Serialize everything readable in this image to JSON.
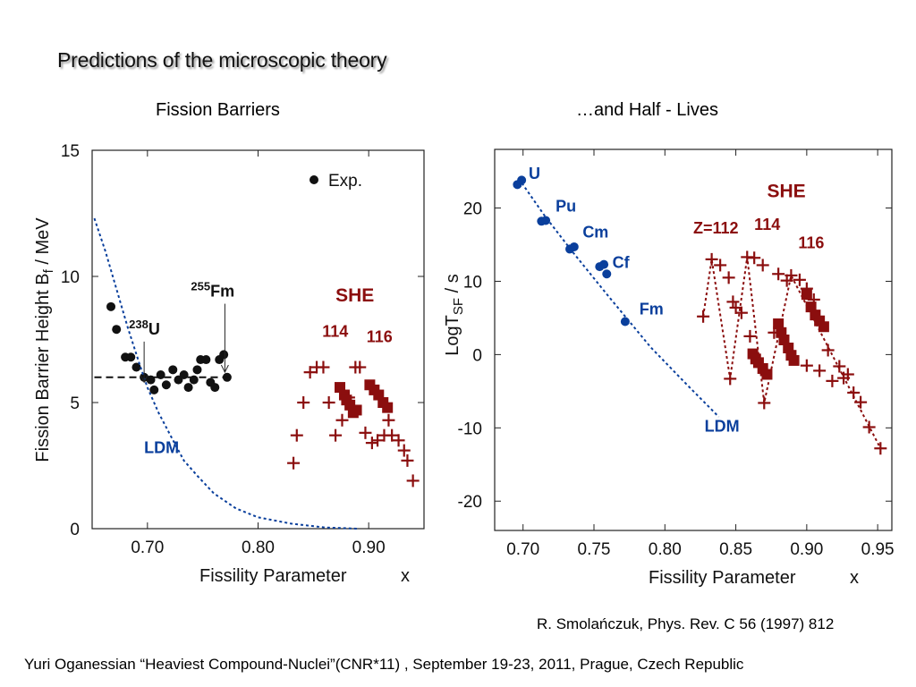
{
  "slide": {
    "title": "Predictions of the microscopic theory",
    "left_heading": "Fission Barriers",
    "right_heading": "…and Half - Lives",
    "reference": "R. Smolańczuk, Phys. Rev. C 56 (1997) 812",
    "footer": "Yuri Oganessian “Heaviest Compound-Nuclei”(CNR*11) , September 19-23, 2011, Prague, Czech Republic"
  },
  "colors": {
    "blue": "#0a3f9c",
    "red": "#8b0e0e",
    "black": "#111111"
  },
  "chart_data": [
    {
      "type": "scatter",
      "title": "Fission Barriers",
      "xlabel": "Fissility Parameter",
      "xlabel_var": "x",
      "ylabel": "Fission Barrier Height",
      "ylabel_main": "B",
      "ylabel_sub": "f",
      "ylabel_units": " / MeV",
      "xlim": [
        0.65,
        0.95
      ],
      "ylim": [
        0,
        15
      ],
      "xticks": [
        0.7,
        0.8,
        0.9
      ],
      "xtick_labels": [
        "0.70",
        "0.80",
        "0.90"
      ],
      "yticks": [
        0,
        5,
        10,
        15
      ],
      "ytick_labels": [
        "0",
        "5",
        "10",
        "15"
      ],
      "legend": {
        "label": "Exp.",
        "position": "top-right"
      },
      "series": [
        {
          "name": "Exp.",
          "marker": "circle",
          "color": "#111111",
          "points": [
            [
              0.667,
              8.8
            ],
            [
              0.672,
              7.9
            ],
            [
              0.68,
              6.8
            ],
            [
              0.685,
              6.8
            ],
            [
              0.69,
              6.4
            ],
            [
              0.697,
              6.0
            ],
            [
              0.703,
              5.9
            ],
            [
              0.706,
              5.5
            ],
            [
              0.712,
              6.1
            ],
            [
              0.717,
              5.7
            ],
            [
              0.723,
              6.3
            ],
            [
              0.728,
              5.9
            ],
            [
              0.733,
              6.1
            ],
            [
              0.737,
              5.6
            ],
            [
              0.742,
              5.9
            ],
            [
              0.745,
              6.3
            ],
            [
              0.748,
              6.7
            ],
            [
              0.753,
              6.7
            ],
            [
              0.757,
              5.8
            ],
            [
              0.761,
              5.6
            ],
            [
              0.765,
              6.7
            ],
            [
              0.769,
              6.9
            ],
            [
              0.772,
              6.0
            ]
          ]
        },
        {
          "marker": "plus",
          "color": "#8b0e0e",
          "points": [
            [
              0.832,
              2.6
            ],
            [
              0.835,
              3.7
            ],
            [
              0.841,
              5.0
            ],
            [
              0.847,
              6.2
            ],
            [
              0.853,
              6.4
            ],
            [
              0.859,
              6.4
            ],
            [
              0.864,
              5.0
            ],
            [
              0.87,
              3.7
            ],
            [
              0.876,
              4.3
            ],
            [
              0.882,
              5.2
            ],
            [
              0.888,
              6.4
            ],
            [
              0.892,
              6.4
            ],
            [
              0.897,
              3.8
            ],
            [
              0.903,
              3.4
            ],
            [
              0.908,
              3.5
            ],
            [
              0.914,
              3.7
            ],
            [
              0.918,
              4.3
            ],
            [
              0.921,
              3.7
            ],
            [
              0.927,
              3.5
            ],
            [
              0.932,
              3.1
            ],
            [
              0.935,
              2.7
            ],
            [
              0.94,
              1.9
            ]
          ]
        },
        {
          "marker": "square",
          "color": "#8b0e0e",
          "points": [
            [
              0.874,
              5.6
            ],
            [
              0.878,
              5.3
            ],
            [
              0.88,
              5.1
            ],
            [
              0.883,
              4.9
            ],
            [
              0.886,
              4.6
            ],
            [
              0.889,
              4.7
            ],
            [
              0.901,
              5.7
            ],
            [
              0.905,
              5.5
            ],
            [
              0.909,
              5.3
            ],
            [
              0.913,
              5.0
            ],
            [
              0.917,
              4.8
            ]
          ]
        },
        {
          "name": "LDM",
          "type": "line",
          "dash": "dotted",
          "color": "#0a3f9c",
          "points": [
            [
              0.652,
              12.3
            ],
            [
              0.662,
              11.0
            ],
            [
              0.672,
              9.5
            ],
            [
              0.682,
              8.0
            ],
            [
              0.693,
              6.5
            ],
            [
              0.7,
              5.6
            ],
            [
              0.71,
              4.6
            ],
            [
              0.722,
              3.6
            ],
            [
              0.733,
              2.7
            ],
            [
              0.745,
              2.1
            ],
            [
              0.76,
              1.4
            ],
            [
              0.78,
              0.8
            ],
            [
              0.8,
              0.45
            ],
            [
              0.83,
              0.2
            ],
            [
              0.86,
              0.05
            ],
            [
              0.89,
              0.0
            ]
          ]
        },
        {
          "type": "line",
          "dash": "dashed",
          "color": "#111111",
          "points": [
            [
              0.652,
              6.0
            ],
            [
              0.778,
              6.0
            ]
          ]
        }
      ],
      "annotations": [
        {
          "type": "arrow",
          "mass": "238",
          "symbol": "U",
          "x": 0.697,
          "y_from": 7.7,
          "y_to": 7.4
        },
        {
          "type": "arrow",
          "mass": "255",
          "symbol": "Fm",
          "x": 0.77,
          "y_from": 9.2,
          "y_to": 7.8
        },
        {
          "text": "SHE",
          "x": 0.87,
          "y": 9.0,
          "color": "#8b0e0e"
        },
        {
          "text": "114",
          "x": 0.858,
          "y": 7.6,
          "color": "#8b0e0e"
        },
        {
          "text": "116",
          "x": 0.898,
          "y": 7.4,
          "color": "#8b0e0e"
        },
        {
          "text": "LDM",
          "x": 0.697,
          "y": 3.0,
          "color": "#0a3f9c"
        }
      ]
    },
    {
      "type": "scatter",
      "title": "…and Half - Lives",
      "xlabel": "Fissility Parameter",
      "xlabel_var": "x",
      "ylabel_main": "LogT",
      "ylabel_sub": "SF",
      "ylabel_units": " / s",
      "xlim": [
        0.68,
        0.96
      ],
      "ylim": [
        -24,
        28
      ],
      "xticks": [
        0.7,
        0.75,
        0.8,
        0.85,
        0.9,
        0.95
      ],
      "xtick_labels": [
        "0.70",
        "0.75",
        "0.80",
        "0.85",
        "0.90",
        "0.95"
      ],
      "yticks": [
        -20,
        -10,
        0,
        10,
        20
      ],
      "ytick_labels": [
        "-20",
        "-10",
        "0",
        "10",
        "20"
      ],
      "series": [
        {
          "marker": "circle",
          "color": "#0a3f9c",
          "points": [
            [
              0.696,
              23.2
            ],
            [
              0.699,
              23.8
            ],
            [
              0.713,
              18.2
            ],
            [
              0.716,
              18.3
            ],
            [
              0.733,
              14.4
            ],
            [
              0.736,
              14.7
            ],
            [
              0.754,
              12.0
            ],
            [
              0.757,
              12.3
            ],
            [
              0.759,
              11.0
            ],
            [
              0.772,
              4.5
            ]
          ]
        },
        {
          "name": "LDM",
          "type": "line",
          "dash": "dotted",
          "color": "#0a3f9c",
          "points": [
            [
              0.697,
              24.0
            ],
            [
              0.715,
              19.0
            ],
            [
              0.735,
              14.0
            ],
            [
              0.76,
              8.0
            ],
            [
              0.79,
              1.0
            ],
            [
              0.815,
              -4.0
            ],
            [
              0.838,
              -8.5
            ]
          ]
        },
        {
          "marker": "plus",
          "color": "#8b0e0e",
          "points": [
            [
              0.827,
              5.2
            ],
            [
              0.833,
              13.0
            ],
            [
              0.839,
              12.2
            ],
            [
              0.845,
              10.5
            ],
            [
              0.848,
              7.2
            ],
            [
              0.85,
              6.4
            ],
            [
              0.854,
              5.7
            ],
            [
              0.858,
              13.3
            ],
            [
              0.863,
              13.2
            ],
            [
              0.86,
              2.5
            ],
            [
              0.846,
              -3.3
            ],
            [
              0.869,
              12.2
            ],
            [
              0.877,
              3.0
            ],
            [
              0.88,
              11.0
            ],
            [
              0.886,
              10.1
            ],
            [
              0.889,
              10.8
            ],
            [
              0.895,
              10.2
            ],
            [
              0.9,
              9.0
            ],
            [
              0.905,
              7.5
            ],
            [
              0.9,
              -1.5
            ],
            [
              0.909,
              -2.2
            ],
            [
              0.915,
              0.6
            ],
            [
              0.918,
              -3.6
            ],
            [
              0.923,
              -1.6
            ],
            [
              0.926,
              -3.2
            ],
            [
              0.929,
              -2.7
            ],
            [
              0.933,
              -5.2
            ],
            [
              0.938,
              -6.5
            ],
            [
              0.944,
              -9.9
            ],
            [
              0.952,
              -12.8
            ],
            [
              0.87,
              -6.6
            ]
          ]
        },
        {
          "marker": "square",
          "color": "#8b0e0e",
          "points": [
            [
              0.862,
              0.1
            ],
            [
              0.864,
              -0.6
            ],
            [
              0.866,
              -1.1
            ],
            [
              0.869,
              -1.9
            ],
            [
              0.872,
              -2.7
            ],
            [
              0.88,
              4.2
            ],
            [
              0.882,
              3.0
            ],
            [
              0.884,
              2.0
            ],
            [
              0.887,
              0.9
            ],
            [
              0.889,
              -0.1
            ],
            [
              0.891,
              -0.8
            ],
            [
              0.9,
              8.2
            ],
            [
              0.903,
              6.5
            ],
            [
              0.906,
              5.4
            ],
            [
              0.909,
              4.6
            ],
            [
              0.912,
              3.8
            ]
          ]
        },
        {
          "type": "line",
          "dash": "dotted",
          "color": "#8b0e0e",
          "points": [
            [
              0.827,
              5.2
            ],
            [
              0.833,
              13.0
            ],
            [
              0.846,
              -3.3
            ],
            [
              0.858,
              13.3
            ],
            [
              0.87,
              -6.6
            ],
            [
              0.889,
              10.8
            ],
            [
              0.952,
              -12.8
            ]
          ]
        }
      ],
      "annotations": [
        {
          "text": "U",
          "x": 0.704,
          "y": 24.0,
          "color": "#0a3f9c"
        },
        {
          "text": "Pu",
          "x": 0.723,
          "y": 19.5,
          "color": "#0a3f9c"
        },
        {
          "text": "Cm",
          "x": 0.742,
          "y": 16.0,
          "color": "#0a3f9c"
        },
        {
          "text": "Cf",
          "x": 0.763,
          "y": 11.8,
          "color": "#0a3f9c"
        },
        {
          "text": "Fm",
          "x": 0.782,
          "y": 5.5,
          "color": "#0a3f9c"
        },
        {
          "text": "LDM",
          "x": 0.828,
          "y": -10.5,
          "color": "#0a3f9c"
        },
        {
          "text": "SHE",
          "x": 0.872,
          "y": 21.5,
          "color": "#8b0e0e"
        },
        {
          "text": "Z=112",
          "x": 0.82,
          "y": 16.5,
          "color": "#8b0e0e"
        },
        {
          "text": "114",
          "x": 0.863,
          "y": 17.0,
          "color": "#8b0e0e"
        },
        {
          "text": "116",
          "x": 0.894,
          "y": 14.5,
          "color": "#8b0e0e"
        }
      ]
    }
  ]
}
